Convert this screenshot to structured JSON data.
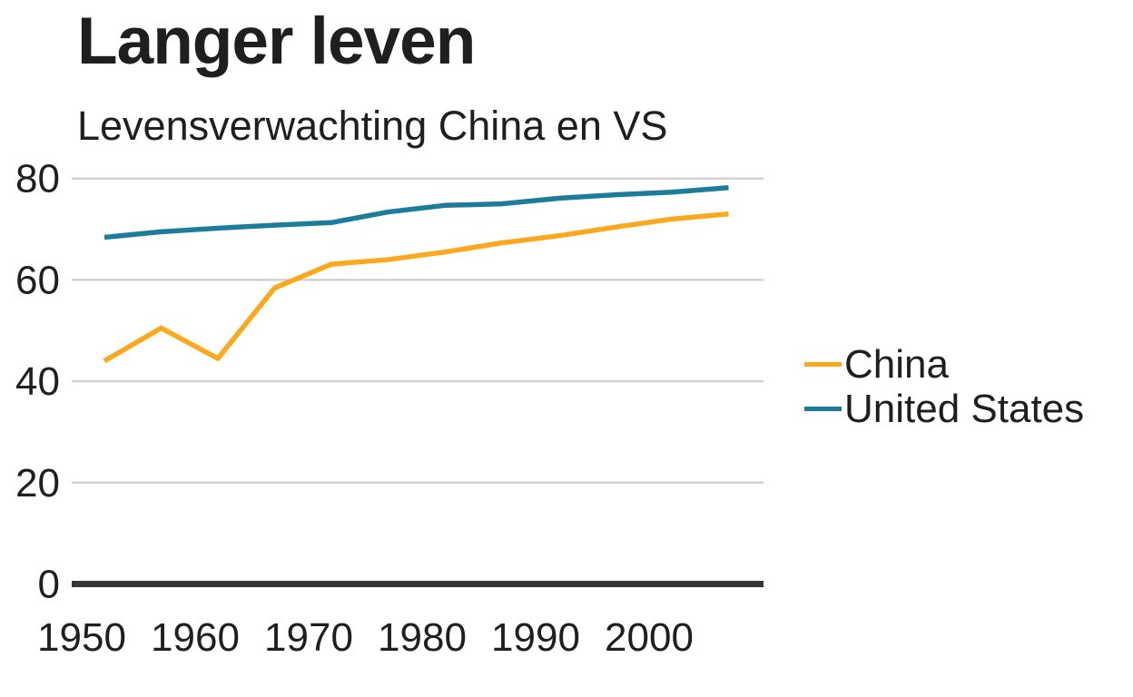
{
  "chart_data": {
    "type": "line",
    "title": "Langer leven",
    "subtitle": "Levensverwachting China en VS",
    "x": [
      1952,
      1957,
      1962,
      1967,
      1972,
      1977,
      1982,
      1987,
      1992,
      1997,
      2002,
      2007
    ],
    "series": [
      {
        "name": "China",
        "color": "#faa81e",
        "values": [
          44.0,
          50.5,
          44.5,
          58.4,
          63.1,
          64.0,
          65.5,
          67.3,
          68.7,
          70.4,
          72.0,
          73.0
        ]
      },
      {
        "name": "United States",
        "color": "#1d7c9c",
        "values": [
          68.4,
          69.5,
          70.2,
          70.8,
          71.3,
          73.4,
          74.7,
          75.0,
          76.1,
          76.8,
          77.3,
          78.2
        ]
      }
    ],
    "y_ticks": [
      0,
      20,
      40,
      60,
      80
    ],
    "x_ticks": [
      1950,
      1960,
      1970,
      1980,
      1990,
      2000
    ],
    "ylim": [
      0,
      83
    ],
    "xlim": [
      1949,
      2010
    ],
    "xlabel": "",
    "ylabel": "",
    "grid": "horizontal-only",
    "legend_position": "right",
    "colors": {
      "axis_line": "#333333",
      "gridline": "#d2d2d2",
      "text": "#1f1f1f"
    }
  }
}
